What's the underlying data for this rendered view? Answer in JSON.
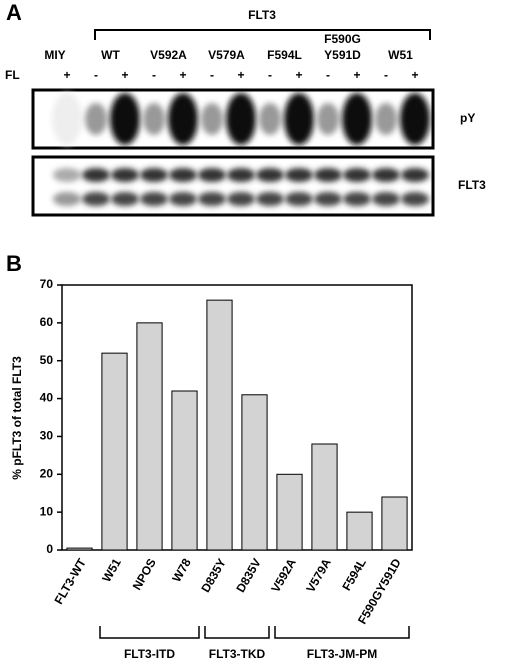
{
  "panel_a": {
    "label": "A",
    "bracket_label": "FLT3",
    "lanes": [
      "MIY",
      "WT",
      "V592A",
      "V579A",
      "F594L",
      "F590G Y591D",
      "W51"
    ],
    "treatment_label": "FL",
    "treatments": [
      "+",
      "-",
      "+",
      "-",
      "+",
      "-",
      "+",
      "-",
      "+",
      "-",
      "+",
      "-",
      "+"
    ],
    "blot_labels": [
      "pY",
      "FLT3"
    ]
  },
  "chart_data": {
    "type": "bar",
    "panel_label": "B",
    "y_label": "% pFLT3 of total FLT3",
    "categories": [
      "FLT3-WT",
      "W51",
      "NPOS",
      "W78",
      "D835Y",
      "D835V",
      "V592A",
      "V579A",
      "F594L",
      "F590GY591D"
    ],
    "values": [
      0.5,
      52,
      60,
      42,
      66,
      41,
      20,
      28,
      10,
      14
    ],
    "color": "#d3d3d3",
    "ylim": [
      0,
      70
    ],
    "yticks": [
      0,
      10,
      20,
      30,
      40,
      50,
      60,
      70
    ],
    "groups": [
      {
        "label": "FLT3-ITD",
        "categories": [
          "W51",
          "NPOS",
          "W78"
        ]
      },
      {
        "label": "FLT3-TKD",
        "categories": [
          "D835Y",
          "D835V"
        ]
      },
      {
        "label": "FLT3-JM-PM",
        "categories": [
          "V592A",
          "V579A",
          "F594L",
          "F590GY591D"
        ]
      }
    ]
  }
}
